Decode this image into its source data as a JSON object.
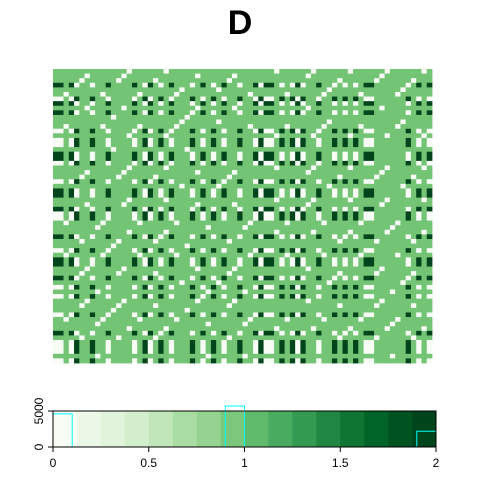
{
  "chart_data": [
    {
      "type": "heatmap",
      "title": "D",
      "value_range": [
        0,
        2
      ],
      "grid": false,
      "n_rows": 64,
      "n_cols": 72,
      "note_values": "matrix of distances with levels 0, 1 and 2 shown by three green shades",
      "levels": [
        0,
        1,
        2
      ],
      "level_colors": [
        "#f7fcf5",
        "#74c476",
        "#00441b"
      ]
    },
    {
      "type": "bar",
      "subtype": "colour-key histogram",
      "xlim": [
        0,
        2
      ],
      "ylim": [
        0,
        5000
      ],
      "x_ticks": [
        "0",
        "0.5",
        "1",
        "1.5",
        "2"
      ],
      "y_ticks": [
        "0",
        "5000"
      ],
      "histogram_bins": [
        {
          "from": 0.0,
          "to": 0.1,
          "count": 4600
        },
        {
          "from": 0.9,
          "to": 1.0,
          "count": 6200
        },
        {
          "from": 1.9,
          "to": 2.0,
          "count": 2200
        }
      ],
      "histogram_color": "#00ffff",
      "palette": [
        "#f7fcf5",
        "#ebf7e7",
        "#e0f3db",
        "#d3eecd",
        "#c0e6b9",
        "#aadda4",
        "#94d390",
        "#7bc87c",
        "#60ba6c",
        "#48ab5f",
        "#329b51",
        "#1f8742",
        "#0f7533",
        "#006428",
        "#005321",
        "#00441b"
      ]
    }
  ]
}
